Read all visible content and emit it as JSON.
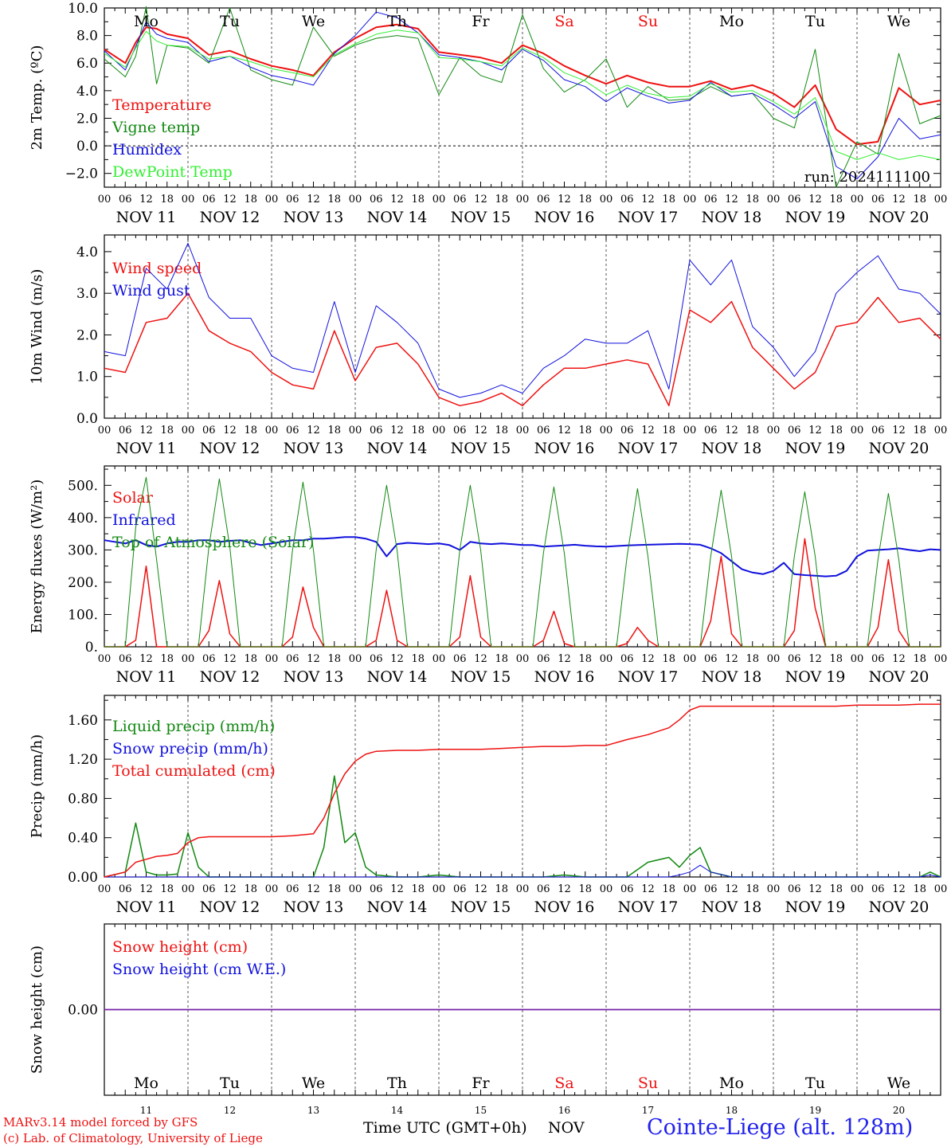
{
  "colors": {
    "red": "#ee1111",
    "green": "#118811",
    "blue": "#1111dd",
    "light_green": "#33ee33",
    "purple": "#7722aa",
    "axis": "#000000"
  },
  "days": [
    "NOV 11",
    "NOV 12",
    "NOV 13",
    "NOV 14",
    "NOV 15",
    "NOV 16",
    "NOV 17",
    "NOV 18",
    "NOV 19",
    "NOV 20"
  ],
  "weekdays": [
    {
      "label": "Mo",
      "color": "#000000"
    },
    {
      "label": "Tu",
      "color": "#000000"
    },
    {
      "label": "We",
      "color": "#000000"
    },
    {
      "label": "Th",
      "color": "#000000"
    },
    {
      "label": "Fr",
      "color": "#000000"
    },
    {
      "label": "Sa",
      "color": "#ee1111"
    },
    {
      "label": "Su",
      "color": "#ee1111"
    },
    {
      "label": "Mo",
      "color": "#000000"
    },
    {
      "label": "Tu",
      "color": "#000000"
    },
    {
      "label": "We",
      "color": "#000000"
    }
  ],
  "day_numbers": [
    "11",
    "12",
    "13",
    "14",
    "15",
    "16",
    "17",
    "18",
    "19",
    "20"
  ],
  "hour_ticks": [
    "00",
    "06",
    "12",
    "18"
  ],
  "hour_end": "00",
  "footer": {
    "credit_line1": "MARv3.14 model forced by GFS",
    "credit_line2": "(c) Lab. of Climatology, University of Liege",
    "xlabel": "Time UTC (GMT+0h)",
    "month": "NOV",
    "station": "Cointe-Liege (alt. 128m)"
  },
  "chart_data": [
    {
      "type": "line",
      "ylabel": "2m Temp. (ºC)",
      "ylim": [
        -3,
        10
      ],
      "yticks": [
        -2,
        0,
        2,
        4,
        6,
        8,
        10
      ],
      "tick_labels": [
        "−2.0",
        "0.0",
        "2.0",
        "4.0",
        "6.0",
        "8.0",
        "10.0"
      ],
      "zero_line": true,
      "annotation": "run: 2024111100",
      "x_hours": [
        0,
        6,
        9,
        12,
        15,
        18,
        24,
        30,
        36,
        42,
        48,
        54,
        60,
        66,
        72,
        78,
        84,
        90,
        96,
        102,
        108,
        114,
        120,
        126,
        132,
        138,
        144,
        150,
        156,
        162,
        168,
        174,
        180,
        186,
        192,
        198,
        204,
        210,
        216,
        222,
        228,
        234,
        240
      ],
      "series": [
        {
          "name": "Temperature",
          "color": "red",
          "values": [
            7.0,
            6.0,
            7.5,
            8.6,
            8.5,
            8.1,
            7.8,
            6.6,
            6.9,
            6.3,
            5.8,
            5.5,
            5.1,
            6.8,
            7.8,
            8.6,
            8.8,
            8.5,
            6.8,
            6.6,
            6.4,
            6.0,
            7.3,
            6.7,
            5.8,
            5.1,
            4.5,
            5.1,
            4.6,
            4.3,
            4.3,
            4.7,
            4.1,
            4.4,
            3.8,
            2.8,
            4.4,
            1.2,
            0.1,
            0.3,
            4.2,
            3.0,
            3.3
          ]
        },
        {
          "name": "Vigne temp",
          "color": "green",
          "values": [
            6.3,
            5.0,
            6.5,
            10.1,
            4.5,
            7.3,
            7.1,
            6.0,
            10.0,
            5.5,
            4.8,
            4.4,
            8.6,
            6.5,
            7.3,
            7.8,
            8.0,
            7.8,
            3.7,
            6.4,
            5.1,
            4.6,
            9.5,
            5.6,
            3.9,
            4.8,
            6.3,
            2.8,
            4.3,
            3.3,
            3.4,
            4.3,
            3.6,
            3.8,
            2.0,
            1.3,
            7.0,
            -3.0,
            0.3,
            -0.6,
            6.7,
            1.6,
            2.2
          ]
        },
        {
          "name": "Humidex",
          "color": "blue",
          "values": [
            6.9,
            5.5,
            7.2,
            9.0,
            8.1,
            7.8,
            7.5,
            6.1,
            6.5,
            5.7,
            5.1,
            4.8,
            4.4,
            6.7,
            8.0,
            9.7,
            9.3,
            8.2,
            6.6,
            6.4,
            6.1,
            5.5,
            7.0,
            6.2,
            4.8,
            4.3,
            3.2,
            4.2,
            3.6,
            3.1,
            3.3,
            4.6,
            3.6,
            3.8,
            3.0,
            2.0,
            3.2,
            -1.5,
            -2.4,
            -0.8,
            2.0,
            0.5,
            0.8
          ]
        },
        {
          "name": "DewPoint Temp",
          "color": "light_green",
          "values": [
            6.7,
            5.7,
            7.1,
            8.3,
            7.6,
            7.3,
            7.2,
            6.3,
            6.5,
            6.1,
            5.6,
            5.3,
            5.0,
            6.6,
            7.4,
            8.1,
            8.4,
            8.2,
            6.4,
            6.3,
            6.1,
            5.8,
            7.1,
            6.4,
            5.3,
            4.7,
            3.7,
            4.4,
            3.8,
            3.5,
            3.6,
            4.5,
            3.9,
            4.0,
            3.2,
            2.3,
            3.5,
            -0.4,
            -1.0,
            -0.5,
            -1.0,
            -0.7,
            -1.0
          ]
        }
      ]
    },
    {
      "type": "line",
      "ylabel": "10m Wind (m/s)",
      "ylim": [
        0,
        4.4
      ],
      "yticks": [
        0,
        1,
        2,
        3,
        4
      ],
      "tick_labels": [
        "0.0",
        "1.0",
        "2.0",
        "3.0",
        "4.0"
      ],
      "x_hours": [
        0,
        6,
        12,
        18,
        24,
        30,
        36,
        42,
        48,
        54,
        60,
        66,
        72,
        78,
        84,
        90,
        96,
        102,
        108,
        114,
        120,
        126,
        132,
        138,
        144,
        150,
        156,
        162,
        168,
        174,
        180,
        186,
        192,
        198,
        204,
        210,
        216,
        222,
        228,
        234,
        240
      ],
      "series": [
        {
          "name": "Wind speed",
          "color": "red",
          "values": [
            1.2,
            1.1,
            2.3,
            2.4,
            3.0,
            2.1,
            1.8,
            1.6,
            1.1,
            0.8,
            0.7,
            2.1,
            0.9,
            1.7,
            1.8,
            1.3,
            0.5,
            0.3,
            0.4,
            0.6,
            0.3,
            0.8,
            1.2,
            1.2,
            1.3,
            1.4,
            1.3,
            0.3,
            2.6,
            2.3,
            2.8,
            1.7,
            1.2,
            0.7,
            1.1,
            2.2,
            2.3,
            2.9,
            2.3,
            2.4,
            1.9
          ]
        },
        {
          "name": "Wind gust",
          "color": "blue",
          "values": [
            1.6,
            1.5,
            3.6,
            3.1,
            4.2,
            2.9,
            2.4,
            2.4,
            1.5,
            1.2,
            1.1,
            2.8,
            1.1,
            2.7,
            2.3,
            1.8,
            0.7,
            0.5,
            0.6,
            0.8,
            0.6,
            1.2,
            1.5,
            1.9,
            1.8,
            1.8,
            2.1,
            0.7,
            3.8,
            3.2,
            3.8,
            2.2,
            1.7,
            1.0,
            1.6,
            3.0,
            3.5,
            3.9,
            3.1,
            3.0,
            2.5
          ]
        }
      ]
    },
    {
      "type": "line",
      "ylabel": "Energy fluxes (W/m²)",
      "ylim": [
        0,
        560
      ],
      "yticks": [
        0,
        100,
        200,
        300,
        400,
        500
      ],
      "tick_labels": [
        "0.",
        "100.",
        "200.",
        "300.",
        "400.",
        "500."
      ],
      "x_hours": [
        0,
        3,
        6,
        9,
        12,
        15,
        18,
        21,
        24,
        27,
        30,
        33,
        36,
        39,
        42,
        45,
        48,
        51,
        54,
        57,
        60,
        63,
        66,
        69,
        72,
        75,
        78,
        81,
        84,
        87,
        90,
        93,
        96,
        99,
        102,
        105,
        108,
        111,
        114,
        117,
        120,
        123,
        126,
        129,
        132,
        135,
        138,
        141,
        144,
        147,
        150,
        153,
        156,
        159,
        162,
        165,
        168,
        171,
        174,
        177,
        180,
        183,
        186,
        189,
        192,
        195,
        198,
        201,
        204,
        207,
        210,
        213,
        216,
        219,
        222,
        225,
        228,
        231,
        234,
        237,
        240
      ],
      "series": [
        {
          "name": "Solar",
          "color": "red",
          "values": [
            0,
            0,
            0,
            20,
            250,
            0,
            0,
            0,
            0,
            0,
            50,
            205,
            40,
            0,
            0,
            0,
            0,
            0,
            30,
            185,
            60,
            0,
            0,
            0,
            0,
            0,
            20,
            175,
            20,
            0,
            0,
            0,
            0,
            0,
            30,
            220,
            30,
            0,
            0,
            0,
            0,
            0,
            20,
            110,
            10,
            0,
            0,
            0,
            0,
            0,
            10,
            60,
            20,
            0,
            0,
            0,
            0,
            0,
            80,
            280,
            40,
            0,
            0,
            0,
            0,
            0,
            50,
            335,
            120,
            0,
            0,
            0,
            0,
            0,
            60,
            270,
            50,
            0,
            0,
            0,
            0
          ]
        },
        {
          "name": "Infrared",
          "color": "blue",
          "values": [
            330,
            325,
            320,
            330,
            315,
            310,
            320,
            325,
            325,
            330,
            330,
            325,
            328,
            330,
            322,
            315,
            320,
            325,
            330,
            330,
            335,
            335,
            337,
            340,
            340,
            335,
            325,
            280,
            318,
            322,
            320,
            318,
            320,
            315,
            300,
            325,
            320,
            318,
            320,
            318,
            315,
            315,
            310,
            312,
            314,
            316,
            313,
            311,
            310,
            312,
            314,
            315,
            316,
            317,
            318,
            319,
            318,
            316,
            305,
            290,
            265,
            240,
            230,
            225,
            235,
            260,
            225,
            222,
            220,
            218,
            220,
            235,
            280,
            298,
            300,
            302,
            305,
            300,
            296,
            302,
            300
          ]
        },
        {
          "name": "Top of Atmosphere (Solar)",
          "color": "green",
          "values": [
            0,
            0,
            0,
            370,
            525,
            270,
            0,
            0,
            0,
            0,
            310,
            520,
            310,
            0,
            0,
            0,
            0,
            0,
            300,
            510,
            300,
            0,
            0,
            0,
            0,
            0,
            300,
            500,
            300,
            0,
            0,
            0,
            0,
            0,
            300,
            500,
            300,
            0,
            0,
            0,
            0,
            0,
            290,
            495,
            290,
            0,
            0,
            0,
            0,
            0,
            280,
            490,
            280,
            0,
            0,
            0,
            0,
            0,
            280,
            485,
            280,
            0,
            0,
            0,
            0,
            0,
            280,
            480,
            280,
            0,
            0,
            0,
            0,
            0,
            270,
            475,
            270,
            0,
            0,
            0,
            0
          ]
        }
      ]
    },
    {
      "type": "line",
      "ylabel": "Precip (mm/h)",
      "ylim": [
        0,
        1.85
      ],
      "yticks": [
        0,
        0.4,
        0.8,
        1.2,
        1.6
      ],
      "tick_labels": [
        "0.00",
        "0.40",
        "0.80",
        "1.20",
        "1.60"
      ],
      "x_hours": [
        0,
        6,
        9,
        12,
        15,
        18,
        21,
        24,
        27,
        30,
        36,
        42,
        48,
        54,
        60,
        63,
        66,
        69,
        72,
        75,
        78,
        84,
        90,
        96,
        102,
        108,
        114,
        120,
        126,
        132,
        138,
        144,
        150,
        156,
        162,
        165,
        168,
        171,
        174,
        180,
        186,
        192,
        198,
        204,
        210,
        216,
        222,
        228,
        234,
        237,
        240
      ],
      "series": [
        {
          "name": "Liquid precip (mm/h)",
          "color": "green",
          "values": [
            0,
            0.05,
            0.55,
            0.05,
            0.02,
            0.02,
            0.03,
            0.45,
            0.1,
            0,
            0,
            0,
            0,
            0,
            0,
            0.3,
            1.03,
            0.35,
            0.45,
            0.1,
            0.02,
            0,
            0,
            0.02,
            0,
            0,
            0,
            0,
            0,
            0.02,
            0,
            0,
            0,
            0.15,
            0.2,
            0.1,
            0.22,
            0.3,
            0.05,
            0,
            0,
            0,
            0,
            0,
            0,
            0,
            0,
            0,
            0,
            0.05,
            0
          ]
        },
        {
          "name": "Snow precip (mm/h)",
          "color": "blue",
          "values": [
            0,
            0,
            0,
            0,
            0,
            0,
            0,
            0,
            0,
            0,
            0,
            0,
            0,
            0,
            0,
            0,
            0,
            0,
            0,
            0,
            0,
            0,
            0,
            0,
            0,
            0,
            0,
            0,
            0,
            0,
            0,
            0,
            0,
            0,
            0,
            0.02,
            0.05,
            0.12,
            0.05,
            0,
            0,
            0,
            0,
            0,
            0,
            0,
            0,
            0,
            0,
            0.02,
            0
          ]
        },
        {
          "name": "Total cumulated (cm)",
          "color": "red",
          "values": [
            0,
            0.05,
            0.15,
            0.18,
            0.21,
            0.22,
            0.24,
            0.35,
            0.4,
            0.41,
            0.41,
            0.41,
            0.41,
            0.42,
            0.44,
            0.6,
            0.85,
            1.05,
            1.18,
            1.25,
            1.28,
            1.29,
            1.29,
            1.3,
            1.3,
            1.3,
            1.31,
            1.32,
            1.33,
            1.33,
            1.34,
            1.34,
            1.4,
            1.45,
            1.52,
            1.6,
            1.7,
            1.74,
            1.74,
            1.74,
            1.74,
            1.74,
            1.74,
            1.74,
            1.74,
            1.75,
            1.75,
            1.75,
            1.76,
            1.76,
            1.76
          ]
        }
      ]
    },
    {
      "type": "line",
      "ylabel": "Snow height (cm)",
      "ylim": [
        -1,
        1
      ],
      "yticks": [
        0
      ],
      "tick_labels": [
        "0.00"
      ],
      "x_hours": [
        0,
        240
      ],
      "series": [
        {
          "name": "Snow height (cm)",
          "color": "red",
          "values": [
            0,
            0
          ]
        },
        {
          "name": "Snow height (cm W.E.)",
          "color": "blue",
          "values": [
            0,
            0
          ]
        }
      ]
    }
  ]
}
